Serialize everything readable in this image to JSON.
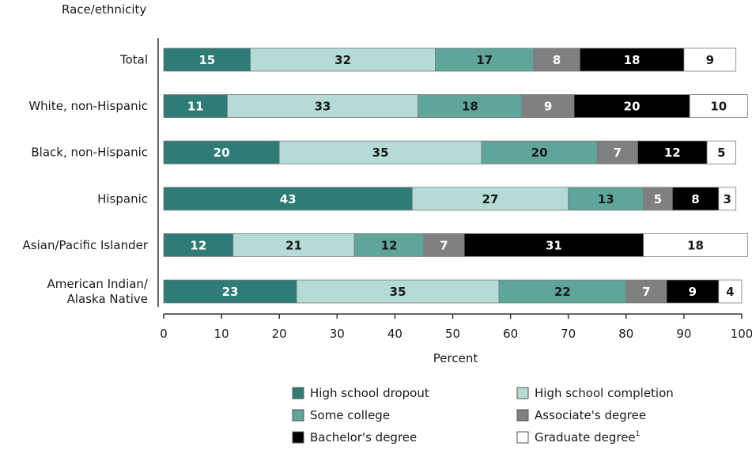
{
  "chart_data": {
    "type": "bar",
    "orientation": "horizontal",
    "stacked": true,
    "ylabel": "Race/ethnicity",
    "xlabel": "Percent",
    "xlim": [
      0,
      100
    ],
    "xticks": [
      "0",
      "10",
      "20",
      "30",
      "40",
      "50",
      "60",
      "70",
      "80",
      "90",
      "100"
    ],
    "categories": [
      [
        "Total"
      ],
      [
        "White, non-Hispanic"
      ],
      [
        "Black, non-Hispanic"
      ],
      [
        "Hispanic"
      ],
      [
        "Asian/Pacific Islander"
      ],
      [
        "American Indian/",
        "Alaska Native"
      ]
    ],
    "series": [
      {
        "name": "High school dropout",
        "color": "#2e7b77",
        "text_color": "#ffffff",
        "values": [
          15,
          11,
          20,
          43,
          12,
          23
        ],
        "labels": [
          "15",
          "11",
          "20",
          "43",
          "12",
          "23"
        ]
      },
      {
        "name": "High school completion",
        "color": "#b4dbd5",
        "text_color": "#1a1a1a",
        "values": [
          32,
          33,
          35,
          27,
          21,
          35
        ],
        "labels": [
          "32",
          "33",
          "35",
          "27",
          "21",
          "35"
        ]
      },
      {
        "name": "Some college",
        "color": "#5fa59a",
        "text_color": "#1a1a1a",
        "values": [
          17,
          18,
          20,
          13,
          12,
          22
        ],
        "labels": [
          "17",
          "18",
          "20",
          "13",
          "12",
          "22"
        ]
      },
      {
        "name": "Associate's degree",
        "color": "#808080",
        "text_color": "#ffffff",
        "values": [
          8,
          9,
          7,
          5,
          7,
          7
        ],
        "labels": [
          "8",
          "9",
          "7",
          "5",
          "7",
          "7"
        ]
      },
      {
        "name": "Bachelor's degree",
        "color": "#000000",
        "text_color": "#ffffff",
        "values": [
          18,
          20,
          12,
          8,
          31,
          9
        ],
        "labels": [
          "18",
          "20",
          "12",
          "8",
          "31",
          "9"
        ]
      },
      {
        "name": "Graduate degree",
        "legend_sup": "1",
        "color": "#ffffff",
        "text_color": "#1a1a1a",
        "values": [
          9,
          10,
          5,
          3,
          18,
          4
        ],
        "labels": [
          "9",
          "10",
          "5",
          "3",
          "18",
          "4"
        ]
      }
    ],
    "legend_position": "bottom",
    "grid": false
  }
}
